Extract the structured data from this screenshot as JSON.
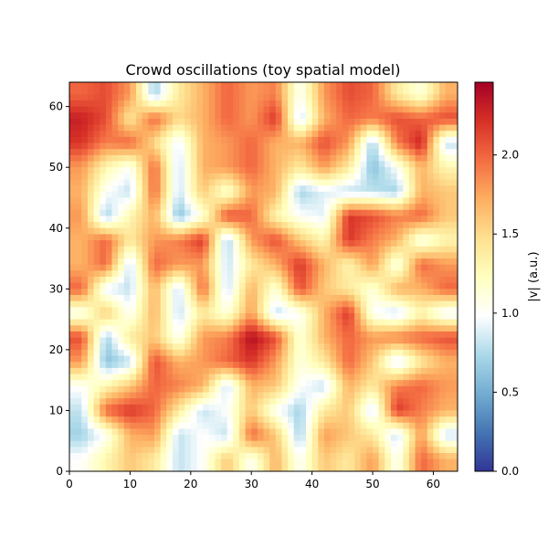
{
  "chart_data": {
    "type": "heatmap",
    "title": "Crowd oscillations (toy spatial model)",
    "xlabel": "",
    "ylabel": "",
    "xlim": [
      0,
      64
    ],
    "ylim": [
      0,
      64
    ],
    "xticks": [
      "0",
      "10",
      "20",
      "30",
      "40",
      "50",
      "60"
    ],
    "yticks": [
      "0",
      "10",
      "20",
      "30",
      "40",
      "50",
      "60"
    ],
    "grid": false,
    "colormap": "RdYlBu_r",
    "colorbar": {
      "label": "|v| (a.u.)",
      "range": [
        0,
        2.46
      ],
      "ticks": [
        "0.0",
        "0.5",
        "1.0",
        "1.5",
        "2.0"
      ]
    },
    "overlay": "black quiver arrows/particle dots scattered over the field",
    "grid_resolution_note": "values sampled on a coarse 16x16 block grid (each block = 4x4 cells), rows listed from top (y=64) to bottom (y=0)",
    "values": [
      [
        2.0,
        2.1,
        1.8,
        0.7,
        1.4,
        1.7,
        2.0,
        1.8,
        1.9,
        1.0,
        1.8,
        2.1,
        2.0,
        1.4,
        1.1,
        1.7
      ],
      [
        2.3,
        2.1,
        1.4,
        2.0,
        1.5,
        1.7,
        2.0,
        1.8,
        2.2,
        0.8,
        1.7,
        2.0,
        1.9,
        2.1,
        2.0,
        2.1
      ],
      [
        2.2,
        1.9,
        2.0,
        1.5,
        0.9,
        1.7,
        1.8,
        2.0,
        1.7,
        1.7,
        2.1,
        1.8,
        0.7,
        1.9,
        2.3,
        0.8
      ],
      [
        1.8,
        1.3,
        1.0,
        2.0,
        0.8,
        1.7,
        1.8,
        2.0,
        1.7,
        1.4,
        1.8,
        1.4,
        0.6,
        1.0,
        1.7,
        1.3
      ],
      [
        1.7,
        1.0,
        0.8,
        2.0,
        0.8,
        1.6,
        1.1,
        1.8,
        1.7,
        0.7,
        0.9,
        0.8,
        0.8,
        0.7,
        1.7,
        1.6
      ],
      [
        1.8,
        0.7,
        1.3,
        1.7,
        0.6,
        1.1,
        2.1,
        2.0,
        1.3,
        1.0,
        0.9,
        2.2,
        2.1,
        1.9,
        2.0,
        1.6
      ],
      [
        1.7,
        2.0,
        1.4,
        1.8,
        1.9,
        2.2,
        0.7,
        1.8,
        2.1,
        1.6,
        1.3,
        2.2,
        1.9,
        1.7,
        1.0,
        1.3
      ],
      [
        1.7,
        2.0,
        0.8,
        2.0,
        1.8,
        1.8,
        0.8,
        1.4,
        1.7,
        2.2,
        1.7,
        1.3,
        1.8,
        1.0,
        2.0,
        1.8
      ],
      [
        2.0,
        0.9,
        0.8,
        1.7,
        0.8,
        2.0,
        0.8,
        1.7,
        1.1,
        2.1,
        1.6,
        1.4,
        1.1,
        1.7,
        1.7,
        2.0
      ],
      [
        1.0,
        1.6,
        1.0,
        1.7,
        0.8,
        1.4,
        1.1,
        1.8,
        0.8,
        1.0,
        1.7,
        2.2,
        1.0,
        0.8,
        1.3,
        0.9
      ],
      [
        2.1,
        0.7,
        1.4,
        1.6,
        1.0,
        1.8,
        1.9,
        2.4,
        2.1,
        1.1,
        1.7,
        2.0,
        1.8,
        1.9,
        2.0,
        2.1
      ],
      [
        1.8,
        0.6,
        0.8,
        2.1,
        1.7,
        1.8,
        2.0,
        2.2,
        1.8,
        1.1,
        1.4,
        2.0,
        1.6,
        0.8,
        1.4,
        1.7
      ],
      [
        1.0,
        1.3,
        1.6,
        2.0,
        1.9,
        1.7,
        0.8,
        1.7,
        1.6,
        1.0,
        0.8,
        1.7,
        1.4,
        1.9,
        2.0,
        1.8
      ],
      [
        0.8,
        2.0,
        2.2,
        2.0,
        1.4,
        0.8,
        1.0,
        1.6,
        1.0,
        0.7,
        1.4,
        1.6,
        0.8,
        2.2,
        1.9,
        1.7
      ],
      [
        0.7,
        1.0,
        1.7,
        1.8,
        0.8,
        1.0,
        0.8,
        2.0,
        1.6,
        0.7,
        1.8,
        1.6,
        1.4,
        0.8,
        1.8,
        0.8
      ],
      [
        1.0,
        1.3,
        1.6,
        1.4,
        0.8,
        1.0,
        1.6,
        1.0,
        1.7,
        1.0,
        1.6,
        1.4,
        1.8,
        1.0,
        2.0,
        1.7
      ]
    ]
  }
}
